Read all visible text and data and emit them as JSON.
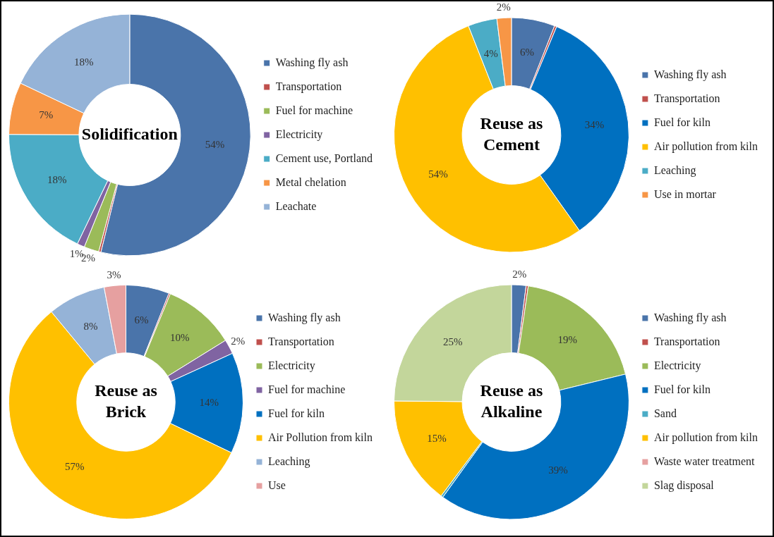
{
  "chart_data": [
    {
      "type": "donut",
      "title": "Solidification",
      "legend": "right",
      "categories": [
        "Washing fly ash",
        "Transportation",
        "Fuel for machine",
        "Electricity",
        "Cement use, Portland",
        "Metal chelation",
        "Leachate"
      ],
      "values": [
        54,
        0.3,
        2,
        1,
        18,
        7,
        18
      ],
      "value_labels": [
        "54%",
        null,
        "2%",
        "1%",
        "18%",
        "7%",
        "18%"
      ],
      "colors": [
        "#4a74aa",
        "#c0504d",
        "#9bbb59",
        "#8064a2",
        "#4bacc6",
        "#f79646",
        "#95b3d7"
      ]
    },
    {
      "type": "donut",
      "title": "Reuse as Cement",
      "legend": "right",
      "categories": [
        "Washing fly ash",
        "Transportation",
        "Fuel for kiln",
        "Air pollution from kiln",
        "Leaching",
        "Use in mortar"
      ],
      "values": [
        6,
        0.3,
        34,
        54,
        4,
        2
      ],
      "value_labels": [
        "6%",
        null,
        "34%",
        "54%",
        "4%",
        "2%"
      ],
      "colors": [
        "#4a74aa",
        "#c0504d",
        "#0070c0",
        "#ffc000",
        "#4bacc6",
        "#f79646"
      ]
    },
    {
      "type": "donut",
      "title": "Reuse as Brick",
      "legend": "right",
      "categories": [
        "Washing fly ash",
        "Transportation",
        "Electricity",
        "Fuel for machine",
        "Fuel for kiln",
        "Air Pollution from kiln",
        "Leaching",
        "Use"
      ],
      "values": [
        6,
        0.2,
        10,
        2,
        14,
        57,
        8,
        3
      ],
      "value_labels": [
        "6%",
        null,
        "10%",
        "2%",
        "14%",
        "57%",
        "8%",
        "3%"
      ],
      "colors": [
        "#4a74aa",
        "#c0504d",
        "#9bbb59",
        "#8064a2",
        "#0070c0",
        "#ffc000",
        "#95b3d7",
        "#e6a0a0"
      ]
    },
    {
      "type": "donut",
      "title": "Reuse as Alkaline",
      "legend": "right",
      "categories": [
        "Washing fly ash",
        "Transportation",
        "Electricity",
        "Fuel for kiln",
        "Sand",
        "Air pollution from kiln",
        "Waste water treatment",
        "Slag disposal"
      ],
      "values": [
        2,
        0.3,
        19,
        39,
        0.3,
        15,
        null,
        25
      ],
      "value_labels": [
        "2%",
        null,
        "19%",
        "39%",
        null,
        "15%",
        null,
        "25%"
      ],
      "colors": [
        "#4a74aa",
        "#c0504d",
        "#9bbb59",
        "#0070c0",
        "#4bacc6",
        "#ffc000",
        "#e6a0a0",
        "#c3d69b"
      ]
    }
  ]
}
